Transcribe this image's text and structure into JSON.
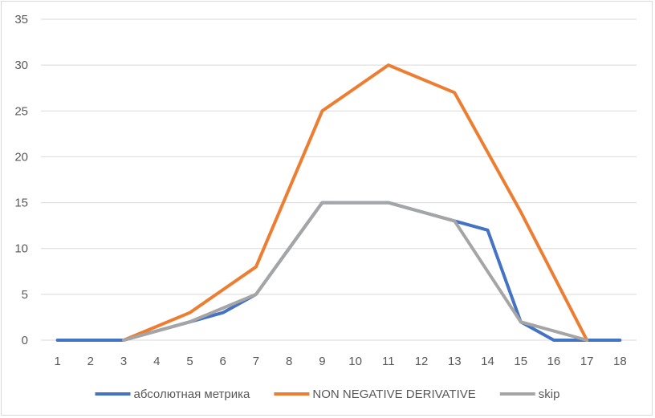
{
  "chart_data": {
    "type": "line",
    "title": "",
    "xlabel": "",
    "ylabel": "",
    "x": [
      1,
      2,
      3,
      4,
      5,
      6,
      7,
      8,
      9,
      10,
      11,
      12,
      13,
      14,
      15,
      16,
      17,
      18
    ],
    "ylim": [
      0,
      35
    ],
    "yticks": [
      0,
      5,
      10,
      15,
      20,
      25,
      30,
      35
    ],
    "grid": true,
    "legend_position": "bottom",
    "series": [
      {
        "name": "абсолютная метрика",
        "color": "#4472c4",
        "values": [
          0,
          0,
          0,
          1,
          2,
          3,
          5,
          10,
          15,
          15,
          15,
          14,
          13,
          12,
          2,
          0,
          0,
          0
        ]
      },
      {
        "name": "NON NEGATIVE DERIVATIVE",
        "color": "#ed7d31",
        "values": [
          null,
          null,
          0,
          1.5,
          3,
          5.5,
          8,
          16.5,
          25,
          27.5,
          30,
          28.5,
          27,
          20.5,
          14,
          7,
          0,
          null
        ]
      },
      {
        "name": "skip",
        "color": "#a5a5a5",
        "values": [
          null,
          null,
          0,
          1,
          2,
          3.5,
          5,
          10,
          15,
          15,
          15,
          14,
          13,
          7.5,
          2,
          1,
          0,
          null
        ]
      }
    ]
  }
}
